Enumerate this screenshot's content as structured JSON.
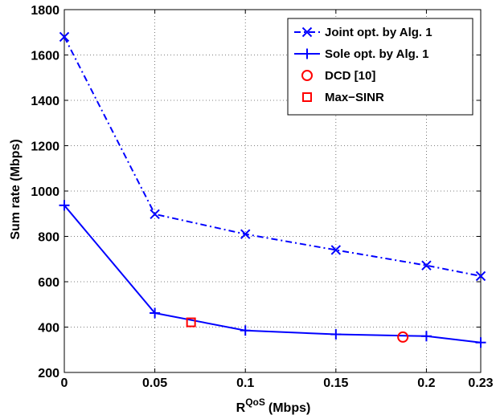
{
  "chart_data": {
    "type": "line",
    "xlabel": "R",
    "xlabel_superscript": "QoS",
    "xlabel_unit": "(Mbps)",
    "ylabel": "Sum rate (Mbps)",
    "xlim": [
      0,
      0.23
    ],
    "ylim": [
      200,
      1800
    ],
    "xticks": [
      0,
      0.05,
      0.1,
      0.15,
      0.2,
      0.23
    ],
    "xtick_labels": [
      "0",
      "0.05",
      "0.1",
      "0.15",
      "0.2",
      "0.23"
    ],
    "yticks": [
      200,
      400,
      600,
      800,
      1000,
      1200,
      1400,
      1600,
      1800
    ],
    "ytick_labels": [
      "200",
      "400",
      "600",
      "800",
      "1000",
      "1200",
      "1400",
      "1600",
      "1800"
    ],
    "grid": true,
    "legend_position": "top-right",
    "series": [
      {
        "name": "Joint opt. by Alg. 1",
        "marker": "x",
        "line": "dashdot",
        "color": "#0000ff",
        "x": [
          0,
          0.05,
          0.1,
          0.15,
          0.2,
          0.23
        ],
        "y": [
          1680,
          898,
          810,
          740,
          672,
          625
        ]
      },
      {
        "name": "Sole opt. by Alg. 1",
        "marker": "plus",
        "line": "solid",
        "color": "#0000ff",
        "x": [
          0,
          0.05,
          0.1,
          0.15,
          0.2,
          0.23
        ],
        "y": [
          937,
          462,
          385,
          368,
          360,
          332
        ]
      },
      {
        "name": "DCD [10]",
        "marker": "circle",
        "line": "none",
        "color": "#ff0000",
        "x": [
          0.187
        ],
        "y": [
          356
        ]
      },
      {
        "name": "Max−SINR",
        "marker": "square",
        "line": "none",
        "color": "#ff0000",
        "x": [
          0.07
        ],
        "y": [
          421
        ]
      }
    ]
  }
}
